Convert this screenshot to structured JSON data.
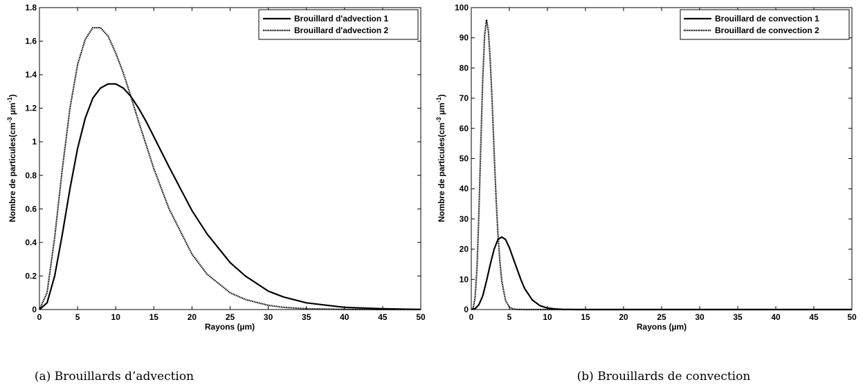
{
  "chart_data": [
    {
      "type": "line",
      "caption": "(a) Brouillards d’advection",
      "xlabel": "Rayons (µm)",
      "ylabel_main": "Nombre de particules(cm",
      "ylabel_sup1": "-3",
      "ylabel_mid": " µm",
      "ylabel_sup2": "-1",
      "ylabel_end": ")",
      "xlim": [
        0,
        50
      ],
      "ylim": [
        0,
        1.8
      ],
      "xticks": [
        "0",
        "5",
        "10",
        "15",
        "20",
        "25",
        "30",
        "35",
        "40",
        "45",
        "50"
      ],
      "yticks": [
        "0",
        "0.2",
        "0.4",
        "0.6",
        "0.8",
        "1",
        "1.2",
        "1.4",
        "1.6",
        "1.8"
      ],
      "legend_position": "top-right",
      "series": [
        {
          "name": "Brouillard d'advection 1",
          "style": "solid",
          "x": [
            0,
            1,
            2,
            3,
            4,
            5,
            6,
            7,
            8,
            9,
            10,
            11,
            12,
            13,
            14,
            15,
            17,
            20,
            22,
            25,
            27,
            30,
            32,
            35,
            40,
            45,
            50
          ],
          "y": [
            0,
            0.04,
            0.2,
            0.45,
            0.72,
            0.96,
            1.14,
            1.26,
            1.32,
            1.345,
            1.345,
            1.32,
            1.27,
            1.2,
            1.12,
            1.03,
            0.85,
            0.59,
            0.45,
            0.28,
            0.2,
            0.11,
            0.075,
            0.04,
            0.013,
            0.005,
            0.001
          ]
        },
        {
          "name": "Brouillard d'advection 2",
          "style": "dotted",
          "x": [
            0,
            1,
            2,
            3,
            4,
            5,
            6,
            7,
            8,
            9,
            10,
            11,
            12,
            13,
            14,
            15,
            17,
            20,
            22,
            25,
            27,
            30,
            32,
            35,
            40,
            45,
            50
          ],
          "y": [
            0,
            0.1,
            0.43,
            0.84,
            1.2,
            1.46,
            1.61,
            1.68,
            1.68,
            1.63,
            1.53,
            1.41,
            1.27,
            1.12,
            0.98,
            0.84,
            0.6,
            0.33,
            0.21,
            0.1,
            0.06,
            0.025,
            0.013,
            0.005,
            0.001,
            0,
            0
          ]
        }
      ]
    },
    {
      "type": "line",
      "caption": "(b) Brouillards de convection",
      "xlabel": "Rayons (µm)",
      "ylabel_main": "Nombre de particules(cm",
      "ylabel_sup1": "-3",
      "ylabel_mid": " µm",
      "ylabel_sup2": "-1",
      "ylabel_end": ")",
      "xlim": [
        0,
        50
      ],
      "ylim": [
        0,
        100
      ],
      "xticks": [
        "0",
        "5",
        "10",
        "15",
        "20",
        "25",
        "30",
        "35",
        "40",
        "45",
        "50"
      ],
      "yticks": [
        "0",
        "10",
        "20",
        "30",
        "40",
        "50",
        "60",
        "70",
        "80",
        "90",
        "100"
      ],
      "legend_position": "top-right",
      "series": [
        {
          "name": "Brouillard de convection 1",
          "style": "solid",
          "x": [
            0,
            0.5,
            1,
            1.5,
            2,
            2.5,
            3,
            3.5,
            4,
            4.5,
            5,
            5.5,
            6,
            6.5,
            7,
            8,
            9,
            10,
            11,
            12,
            14,
            16,
            20,
            30,
            50
          ],
          "y": [
            0,
            0.3,
            1.6,
            4.5,
            9.5,
            15,
            20,
            23.2,
            24,
            23.2,
            20.5,
            17,
            13.5,
            10,
            7,
            3.2,
            1.3,
            0.5,
            0.2,
            0.08,
            0.01,
            0,
            0,
            0,
            0
          ]
        },
        {
          "name": "Brouillard de convection 2",
          "style": "dotted",
          "x": [
            0,
            0.25,
            0.5,
            0.75,
            1,
            1.25,
            1.5,
            1.75,
            2,
            2.25,
            2.5,
            2.75,
            3,
            3.25,
            3.5,
            3.75,
            4,
            4.5,
            5,
            5.5,
            6,
            7,
            8,
            10,
            50
          ],
          "y": [
            0,
            0.5,
            4,
            14,
            32,
            55,
            76,
            91,
            96,
            92,
            82,
            68,
            52,
            37,
            25,
            16,
            9.5,
            3,
            0.8,
            0.2,
            0.05,
            0,
            0,
            0,
            0
          ]
        }
      ]
    }
  ]
}
